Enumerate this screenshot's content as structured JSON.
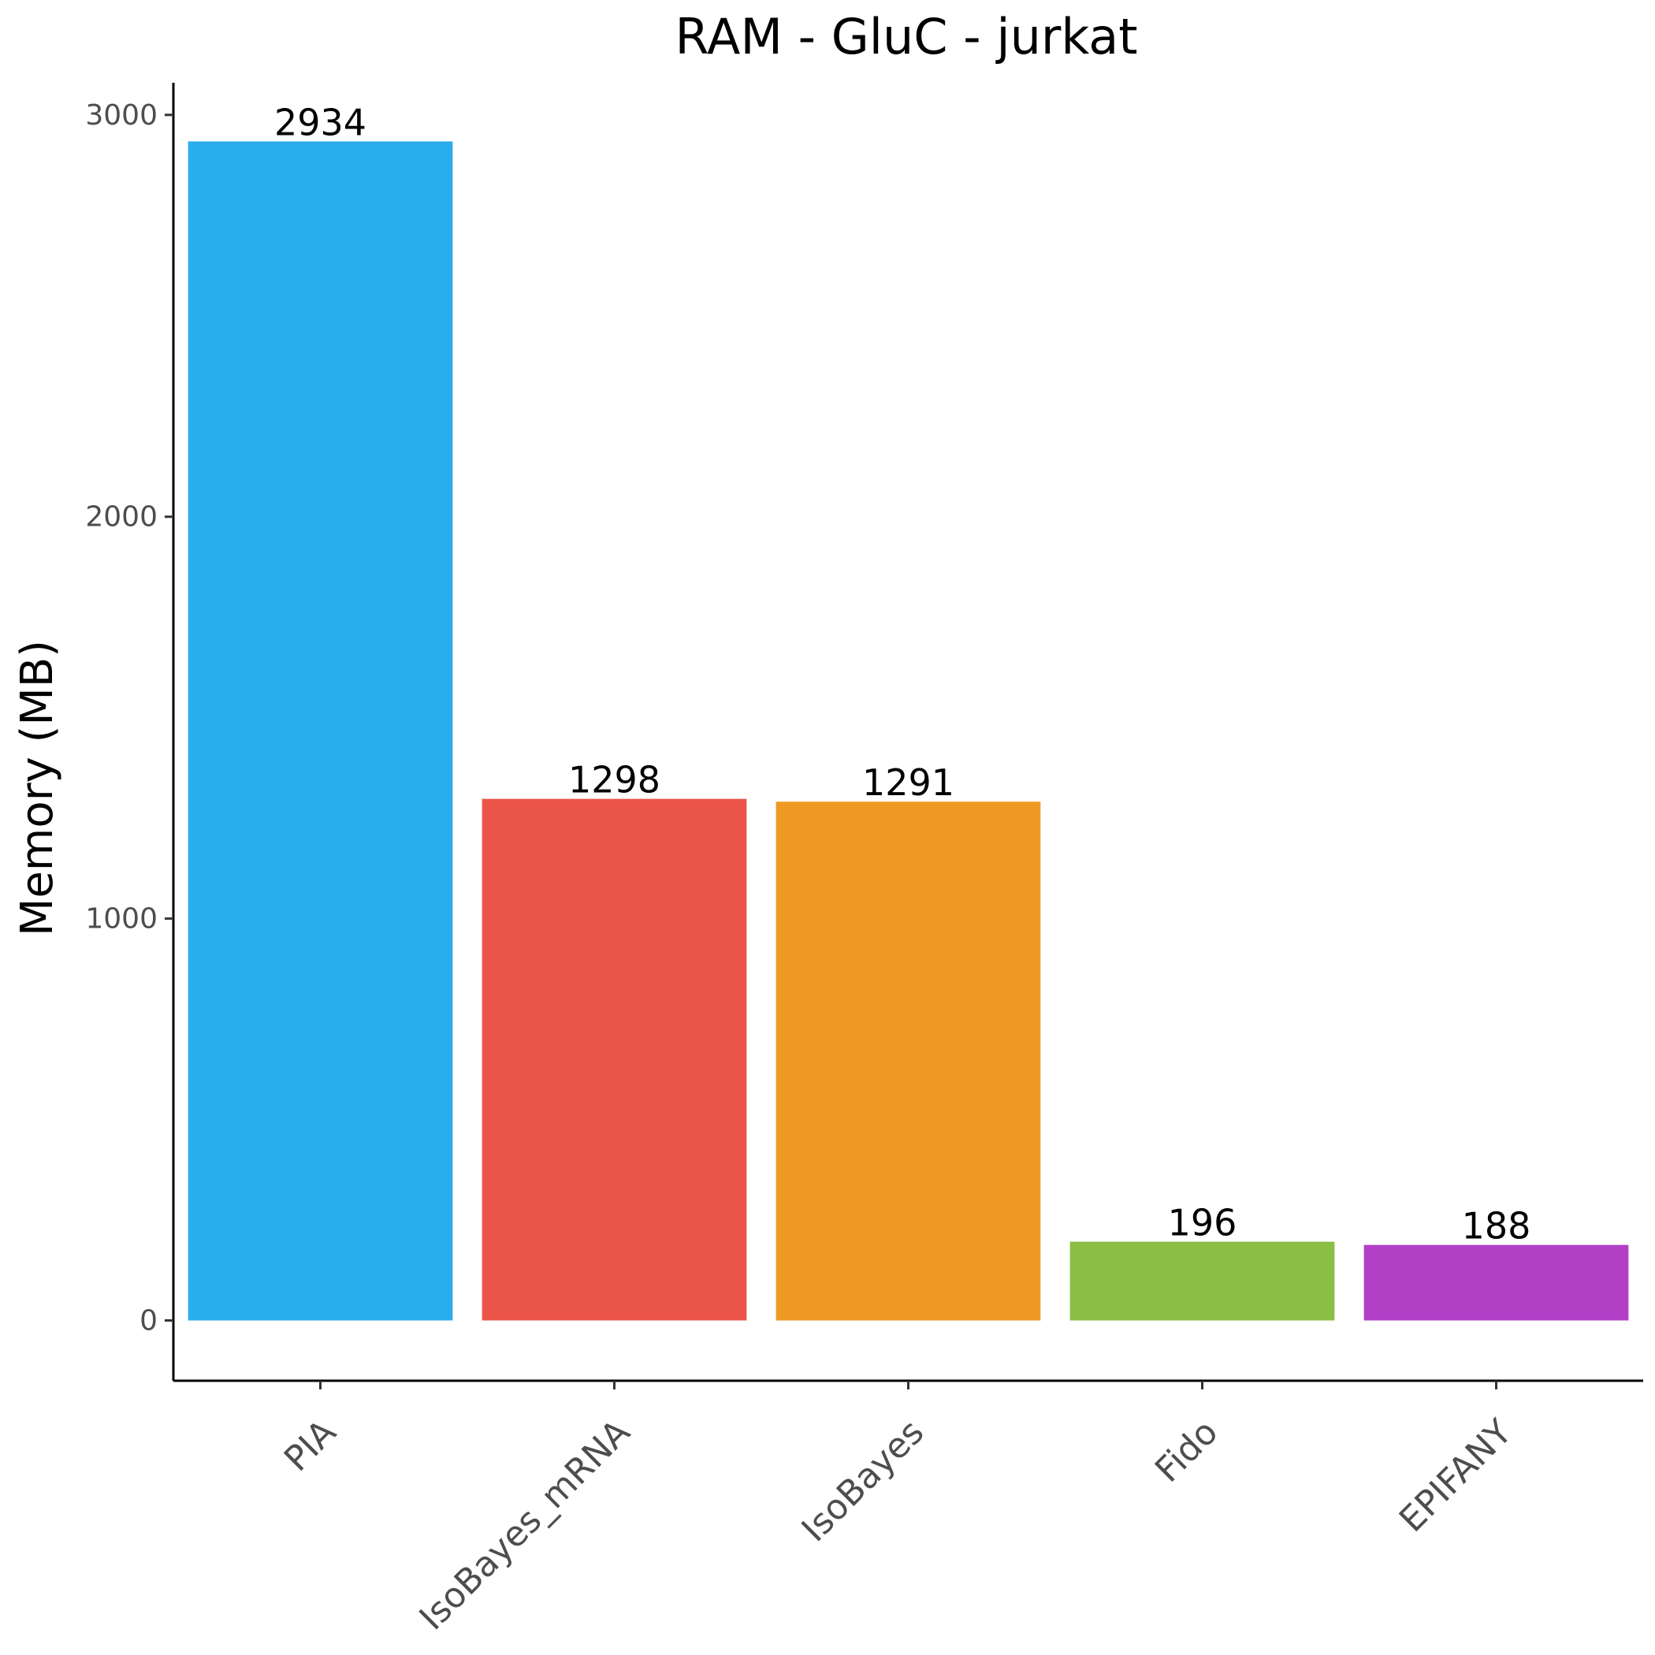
{
  "chart_data": {
    "type": "bar",
    "title": "RAM - GluC - jurkat",
    "xlabel": "",
    "ylabel": "Memory (MB)",
    "ylim": [
      -150,
      3080
    ],
    "yticks": [
      {
        "value": 0,
        "label": "0"
      },
      {
        "value": 1000,
        "label": "1000"
      },
      {
        "value": 2000,
        "label": "2000"
      },
      {
        "value": 3000,
        "label": "3000"
      }
    ],
    "grid": false,
    "legend": "none",
    "categories": [
      "PIA",
      "IsoBayes_mRNA",
      "IsoBayes",
      "Fido",
      "EPIFANY"
    ],
    "values": [
      2934,
      1298,
      1291,
      196,
      188
    ],
    "data_labels": [
      "2934",
      "1298",
      "1291",
      "196",
      "188"
    ],
    "colors": [
      "#29aded",
      "#eb5549",
      "#ee9a22",
      "#8abe44",
      "#b140c7"
    ]
  }
}
